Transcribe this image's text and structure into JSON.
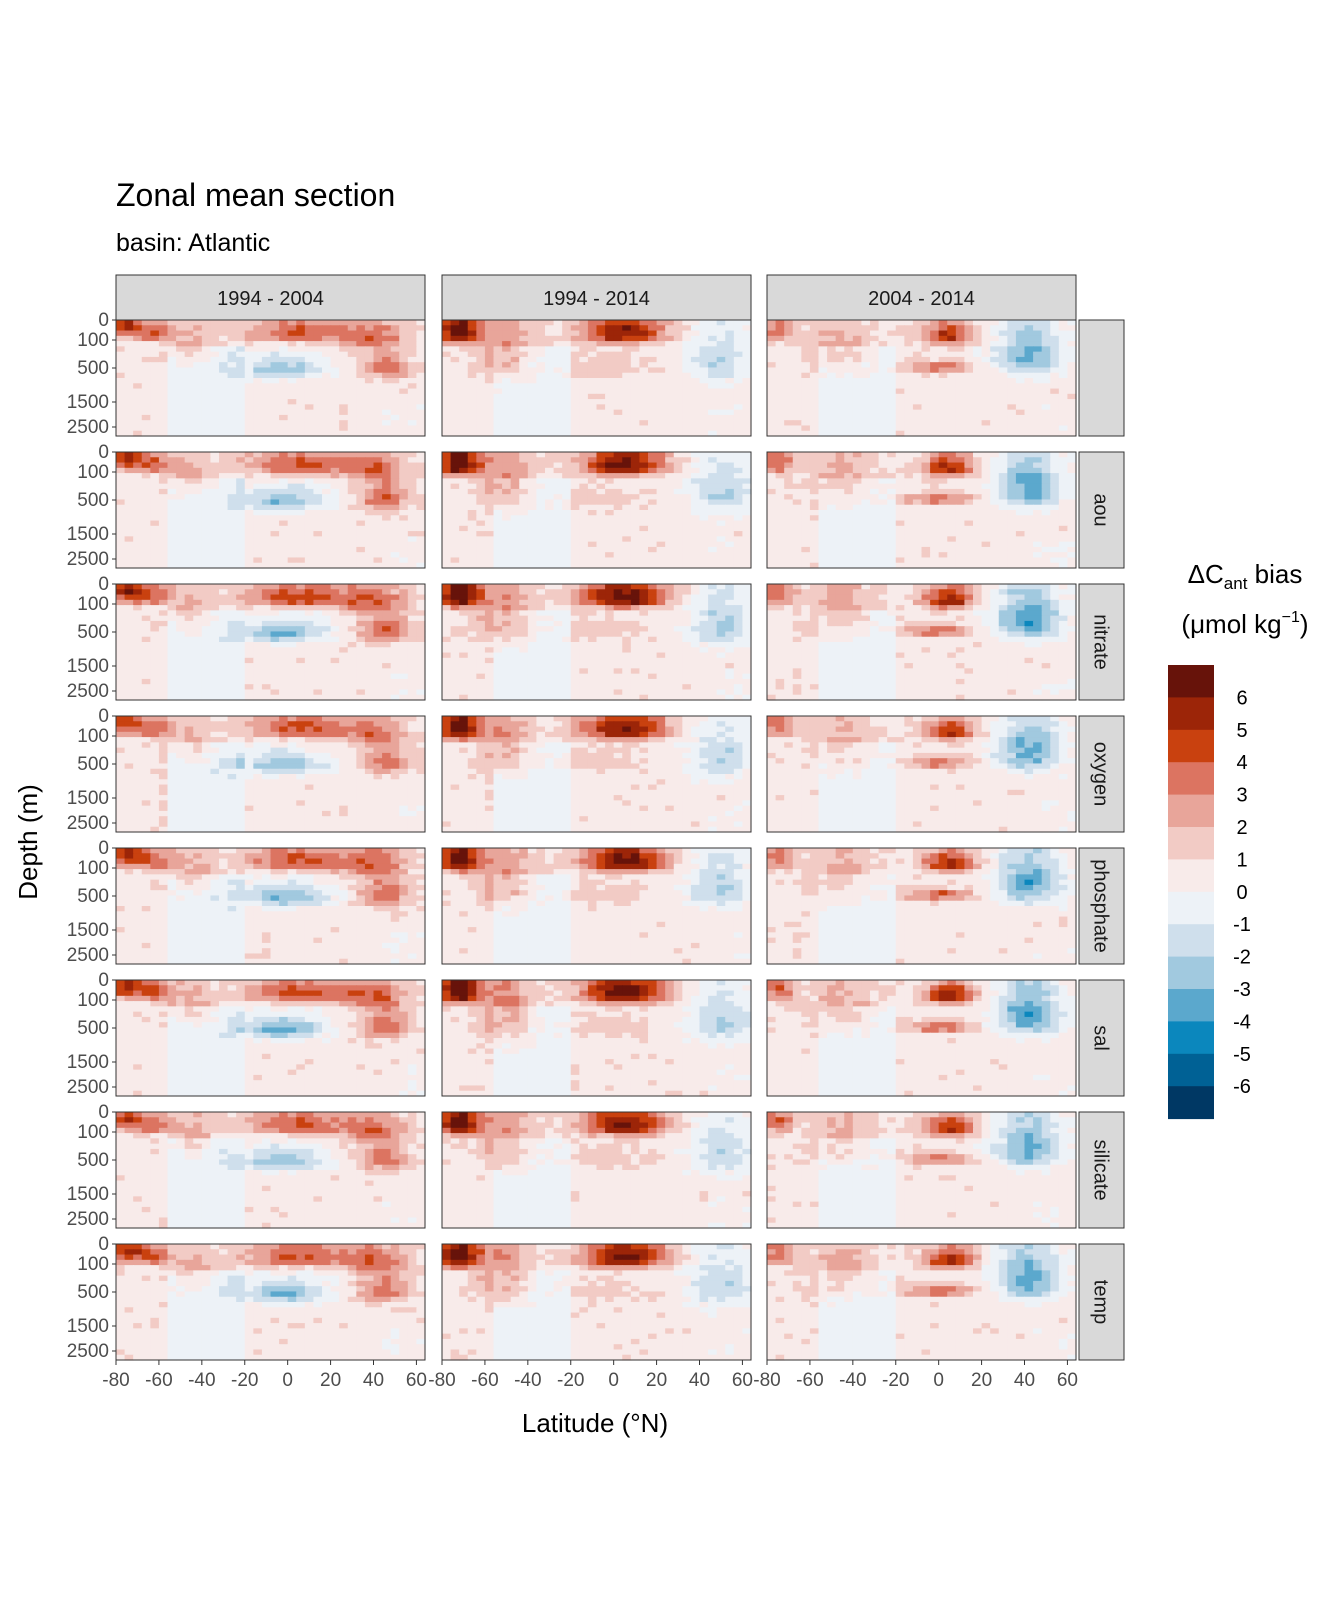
{
  "chart_data": {
    "type": "heatmap",
    "title": "Zonal mean section",
    "subtitle": "basin: Atlantic",
    "xlabel": "Latitude (°N)",
    "ylabel": "Depth (m)",
    "x_ticks": [
      "-80",
      "-60",
      "-40",
      "-20",
      "0",
      "20",
      "40",
      "60"
    ],
    "x_tick_values": [
      -80,
      -60,
      -40,
      -20,
      0,
      20,
      40,
      60
    ],
    "xlim": [
      -80,
      64
    ],
    "y_ticks": [
      "0",
      "100",
      "500",
      "1500",
      "2500"
    ],
    "y_tick_values": [
      0,
      100,
      500,
      1500,
      2500
    ],
    "ylim": [
      3000,
      0
    ],
    "col_facets": [
      "1994 - 2004",
      "1994 - 2014",
      "2004 - 2014"
    ],
    "row_facets": [
      "",
      "aou",
      "nitrate",
      "oxygen",
      "phosphate",
      "sal",
      "silicate",
      "temp"
    ],
    "legend": {
      "title_main": "ΔC",
      "title_sub": "ant",
      "title_tail": " bias",
      "units_pre": "(μmol kg",
      "units_sup": "−1",
      "units_post": ")",
      "labels": [
        "6",
        "5",
        "4",
        "3",
        "2",
        "1",
        "0",
        "-1",
        "-2",
        "-3",
        "-4",
        "-5",
        "-6"
      ],
      "colors": [
        "#67130a",
        "#9c2508",
        "#c9410f",
        "#dc7461",
        "#e8a59a",
        "#f2cbc5",
        "#f8ebea",
        "#edf2f7",
        "#cfdfec",
        "#a1c9df",
        "#5ba8cd",
        "#0b87bd",
        "#006195",
        "#003864"
      ],
      "placement": "right"
    },
    "features_description": "Anomaly pattern per panel (data units: bias in umol/kg at latitude / depth)",
    "panels": {
      "1994 - 2004": {
        "features": [
          {
            "lat": -75,
            "depth": 30,
            "value": 4.5,
            "w": 8,
            "d": 60
          },
          {
            "lat": -62,
            "depth": 60,
            "value": 3,
            "w": 8,
            "d": 60
          },
          {
            "lat": -45,
            "depth": 200,
            "value": 1.8,
            "w": 10,
            "d": 250
          },
          {
            "lat": 5,
            "depth": 60,
            "value": 3.5,
            "w": 25,
            "d": 80
          },
          {
            "lat": -2,
            "depth": 550,
            "value": -3.5,
            "w": 20,
            "d": 250
          },
          {
            "lat": 40,
            "depth": 100,
            "value": 2.5,
            "w": 15,
            "d": 120
          },
          {
            "lat": 45,
            "depth": 500,
            "value": 3,
            "w": 12,
            "d": 300
          }
        ]
      },
      "1994 - 2014": {
        "features": [
          {
            "lat": -72,
            "depth": 50,
            "value": 6,
            "w": 10,
            "d": 100
          },
          {
            "lat": -50,
            "depth": 300,
            "value": 2.5,
            "w": 12,
            "d": 500
          },
          {
            "lat": 5,
            "depth": 60,
            "value": 5.5,
            "w": 20,
            "d": 90
          },
          {
            "lat": -5,
            "depth": 500,
            "value": 1,
            "w": 20,
            "d": 200
          },
          {
            "lat": 50,
            "depth": 400,
            "value": -2.5,
            "w": 15,
            "d": 500
          }
        ]
      },
      "2004 - 2014": {
        "features": [
          {
            "lat": -75,
            "depth": 40,
            "value": 3,
            "w": 8,
            "d": 80
          },
          {
            "lat": -45,
            "depth": 250,
            "value": 1.8,
            "w": 15,
            "d": 400
          },
          {
            "lat": 5,
            "depth": 80,
            "value": 4.5,
            "w": 12,
            "d": 80
          },
          {
            "lat": 0,
            "depth": 500,
            "value": 3.5,
            "w": 15,
            "d": 100
          },
          {
            "lat": 42,
            "depth": 300,
            "value": -4,
            "w": 15,
            "d": 400
          }
        ]
      }
    }
  }
}
